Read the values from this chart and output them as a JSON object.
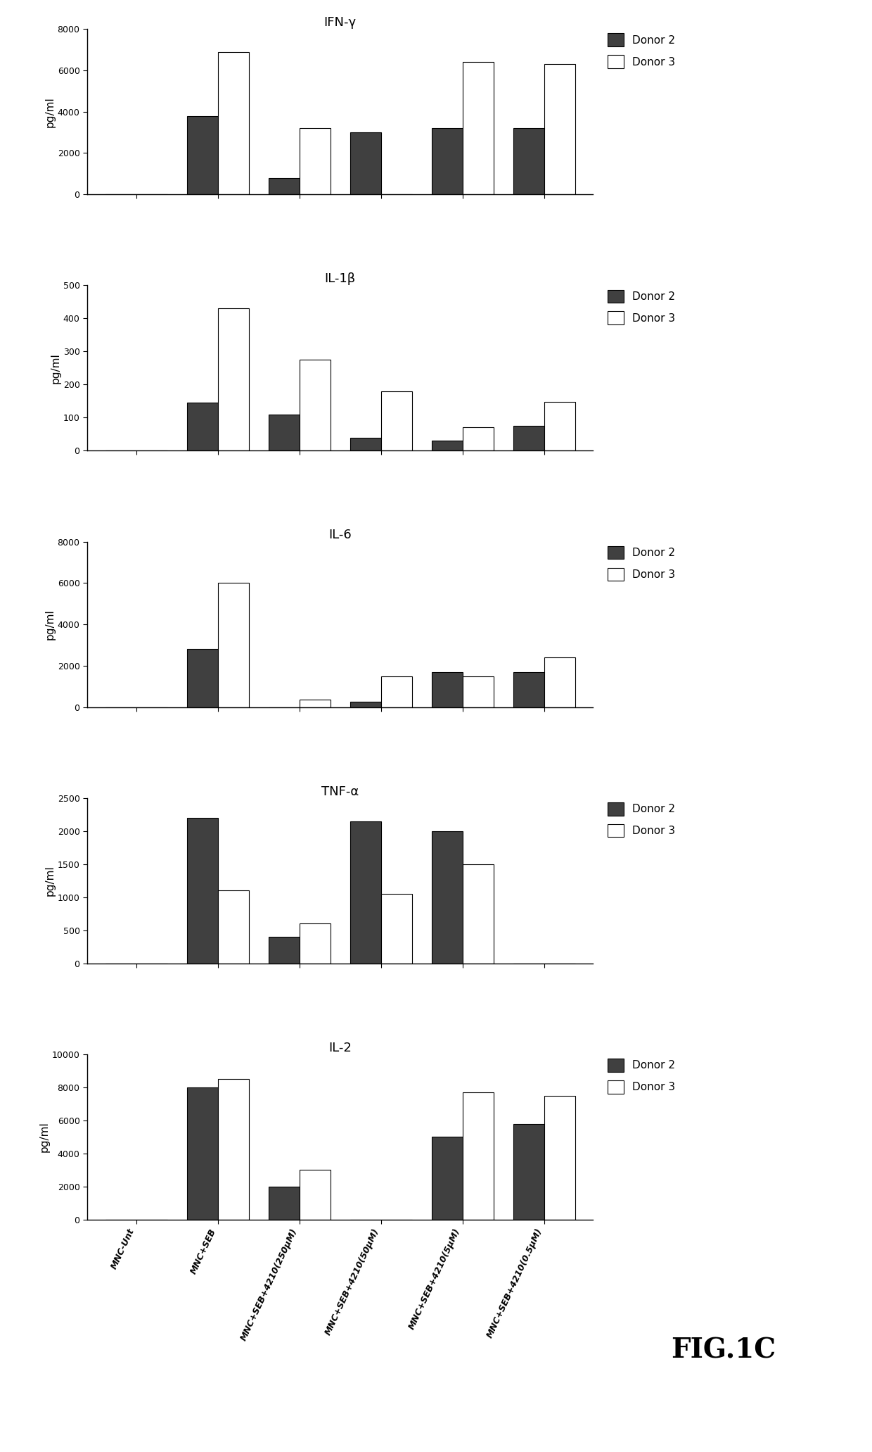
{
  "categories": [
    "MNC-Unt",
    "MNC+SEB",
    "MNC+SEB+4210(250μM)",
    "MNC+SEB+4210(50μM)",
    "MNC+SEB+4210(5μM)",
    "MNC+SEB+4210(0.5μM)"
  ],
  "panels": [
    {
      "title": "IFN-γ",
      "ylabel": "pg/ml",
      "ylim": [
        0,
        8000
      ],
      "yticks": [
        0,
        2000,
        4000,
        6000,
        8000
      ],
      "donor2": [
        0,
        3800,
        800,
        3000,
        3200,
        3200
      ],
      "donor3": [
        0,
        6900,
        3200,
        0,
        6400,
        6300
      ]
    },
    {
      "title": "IL-1β",
      "ylabel": "pg/ml",
      "ylim": [
        0,
        500
      ],
      "yticks": [
        0,
        100,
        200,
        300,
        400,
        500
      ],
      "donor2": [
        0,
        145,
        110,
        40,
        30,
        75
      ],
      "donor3": [
        0,
        430,
        275,
        180,
        70,
        148
      ]
    },
    {
      "title": "IL-6",
      "ylabel": "pg/ml",
      "ylim": [
        0,
        8000
      ],
      "yticks": [
        0,
        2000,
        4000,
        6000,
        8000
      ],
      "donor2": [
        0,
        2800,
        0,
        250,
        1700,
        1700
      ],
      "donor3": [
        0,
        6000,
        350,
        1500,
        1500,
        2400
      ]
    },
    {
      "title": "TNF-α",
      "ylabel": "pg/ml",
      "ylim": [
        0,
        2500
      ],
      "yticks": [
        0,
        500,
        1000,
        1500,
        2000,
        2500
      ],
      "donor2": [
        0,
        2200,
        400,
        2150,
        2000,
        0
      ],
      "donor3": [
        0,
        1100,
        600,
        1050,
        1500,
        0
      ]
    },
    {
      "title": "IL-2",
      "ylabel": "pg/ml",
      "ylim": [
        0,
        10000
      ],
      "yticks": [
        0,
        2000,
        4000,
        6000,
        8000,
        10000
      ],
      "donor2": [
        0,
        8000,
        2000,
        0,
        5000,
        5800
      ],
      "donor3": [
        0,
        8500,
        3000,
        0,
        7700,
        7500
      ]
    }
  ],
  "donor2_color": "#404040",
  "donor3_color": "#ffffff",
  "bar_edge_color": "#000000",
  "bar_width": 0.38,
  "fig_label": "FIG.1C"
}
